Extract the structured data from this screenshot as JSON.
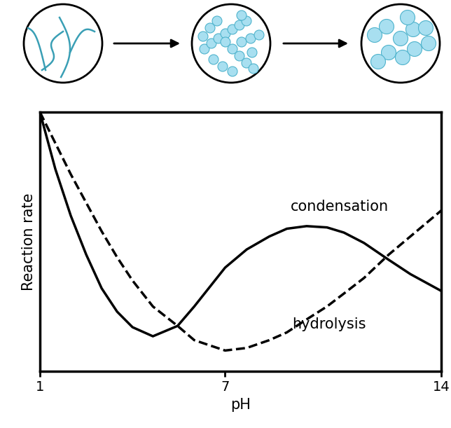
{
  "chart_data": {
    "type": "line",
    "x_label": "pH",
    "y_label": "Reaction rate",
    "x": [
      1,
      1.5,
      2,
      2.5,
      3,
      3.5,
      4,
      4.66,
      5.46,
      6,
      7,
      7.7,
      8.43,
      9,
      9.64,
      10.3,
      10.85,
      11.5,
      12.3,
      13,
      14
    ],
    "series": [
      {
        "name": "condensation",
        "color": "#000000",
        "line_style": "solid",
        "values": [
          10,
          7.8,
          6.0,
          4.5,
          3.2,
          2.3,
          1.7,
          1.35,
          1.75,
          2.5,
          4.0,
          4.7,
          5.2,
          5.5,
          5.6,
          5.55,
          5.35,
          4.95,
          4.3,
          3.75,
          3.1
        ]
      },
      {
        "name": "hydrolysis",
        "color": "#000000",
        "line_style": "dashed",
        "values": [
          10,
          8.8,
          7.6,
          6.5,
          5.4,
          4.4,
          3.5,
          2.5,
          1.75,
          1.2,
          0.8,
          0.9,
          1.2,
          1.5,
          2.0,
          2.5,
          3.0,
          3.6,
          4.5,
          5.2,
          6.2
        ]
      }
    ],
    "xlim": [
      1,
      14
    ],
    "xticks": [
      1,
      7,
      14
    ],
    "ylim": [
      0,
      10
    ],
    "yticks": [],
    "tick_labels": "x",
    "grid": false
  }
}
